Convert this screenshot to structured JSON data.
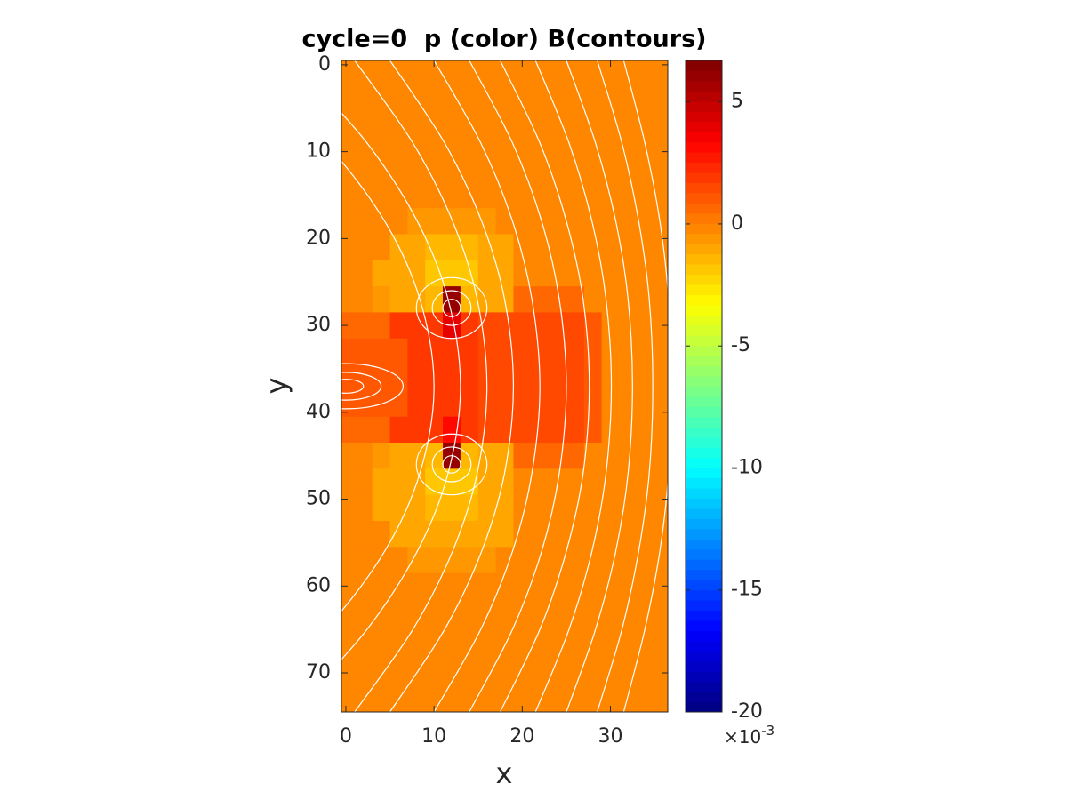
{
  "chart_data": {
    "type": "heatmap",
    "title": "cycle=0  p (color) B(contours)",
    "x_label": "x",
    "y_label": "y",
    "xlim": [
      -0.5,
      36.5
    ],
    "ylim": [
      -0.5,
      74.5
    ],
    "y_reversed": true,
    "xticks": [
      0,
      10,
      20,
      30
    ],
    "yticks": [
      0,
      10,
      20,
      30,
      40,
      50,
      60,
      70
    ],
    "colormap": "jet",
    "clim": [
      -20,
      6.7
    ],
    "colorbar_ticks": [
      -20,
      -15,
      -10,
      -5,
      0,
      5
    ],
    "colorbar_scale_label": {
      "base": "×10",
      "exponent": "-3"
    },
    "x": [
      0,
      2,
      4,
      6,
      8,
      10,
      12,
      14,
      16,
      18,
      20,
      22,
      24,
      26,
      28,
      30,
      32,
      34,
      36
    ],
    "y": [
      0,
      3,
      6,
      9,
      12,
      15,
      18,
      21,
      24,
      27,
      30,
      33,
      36,
      39,
      42,
      45,
      48,
      51,
      54,
      57,
      60,
      63,
      66,
      69,
      72,
      75
    ],
    "values": [
      [
        0,
        0,
        0,
        0,
        0,
        0,
        0,
        0,
        0,
        0,
        0,
        0,
        0,
        0,
        0,
        0,
        0,
        0,
        0
      ],
      [
        0,
        0,
        0,
        0,
        0,
        0,
        0,
        0,
        0,
        0,
        0,
        0,
        0,
        0,
        0,
        0,
        0,
        0,
        0
      ],
      [
        0,
        0,
        0,
        0,
        0,
        0,
        0,
        0,
        0,
        0,
        0,
        0,
        0,
        0,
        0,
        0,
        0,
        0,
        0
      ],
      [
        0,
        0,
        0,
        0,
        0,
        0,
        0,
        0,
        0,
        0,
        0,
        0,
        0,
        0,
        0,
        0,
        0,
        0,
        0
      ],
      [
        0,
        0,
        0,
        0,
        0,
        0,
        0,
        0,
        0,
        0,
        0,
        0,
        0,
        0,
        0,
        0,
        0,
        0,
        0
      ],
      [
        0,
        0,
        0,
        0,
        0,
        0,
        0,
        0,
        0,
        0,
        0,
        0,
        0,
        0,
        0,
        0,
        0,
        0,
        0
      ],
      [
        0,
        0,
        0,
        0,
        -0.5,
        -0.5,
        -0.5,
        -0.5,
        -0.5,
        0,
        0,
        0,
        0,
        0,
        0,
        0,
        0,
        0,
        0
      ],
      [
        0,
        0,
        0,
        -1,
        -1,
        -1.5,
        -1.5,
        -1.5,
        -1,
        -1,
        0,
        0,
        0,
        0,
        0,
        0,
        0,
        0,
        0
      ],
      [
        0,
        0,
        -1,
        -1,
        -1,
        -2,
        -2,
        -2,
        -1,
        -1,
        0,
        0,
        0,
        0,
        0,
        0,
        0,
        0,
        0
      ],
      [
        0,
        0,
        -0.5,
        -1,
        -1,
        -1.5,
        6,
        -1.5,
        -1,
        -1,
        0.5,
        0.5,
        0.5,
        0.5,
        0,
        0,
        0,
        0,
        0
      ],
      [
        0.5,
        0.5,
        0.5,
        2,
        2,
        2,
        4,
        2,
        1.5,
        1.5,
        1.5,
        1.5,
        1.5,
        1.5,
        1,
        0,
        0,
        0,
        0
      ],
      [
        1,
        1,
        1,
        1,
        2,
        2,
        2,
        2,
        1.5,
        1.5,
        1.5,
        1.5,
        1.5,
        1.5,
        1,
        0,
        0,
        0,
        0
      ],
      [
        1,
        1,
        1,
        1,
        2,
        2,
        2,
        2,
        1.5,
        1.5,
        1.5,
        1.5,
        1.5,
        1.5,
        1,
        0,
        0,
        0,
        0
      ],
      [
        1,
        1,
        1,
        1,
        2,
        2,
        2,
        2,
        1.5,
        1.5,
        1.5,
        1.5,
        1.5,
        1.5,
        1,
        0,
        0,
        0,
        0
      ],
      [
        0.5,
        0.5,
        0.5,
        2,
        2,
        2,
        3,
        2,
        1.5,
        1.5,
        1.5,
        1.5,
        1.5,
        1.5,
        1,
        0,
        0,
        0,
        0
      ],
      [
        0,
        0,
        -0.5,
        -1,
        -1,
        -1.5,
        6,
        -1.5,
        -1,
        -1,
        0.5,
        0.5,
        0.5,
        0.5,
        0,
        0,
        0,
        0,
        0
      ],
      [
        0,
        0,
        -1,
        -1,
        -1,
        -2,
        -2,
        -2,
        -1,
        -1,
        0,
        0,
        0,
        0,
        0,
        0,
        0,
        0,
        0
      ],
      [
        0,
        0,
        -1,
        -1,
        -1,
        -1.5,
        -1.5,
        -1.5,
        -1,
        -1,
        0,
        0,
        0,
        0,
        0,
        0,
        0,
        0,
        0
      ],
      [
        0,
        0,
        0,
        -1,
        -1,
        -1,
        -1,
        -1,
        -1,
        -1,
        0,
        0,
        0,
        0,
        0,
        0,
        0,
        0,
        0
      ],
      [
        0,
        0,
        0,
        0,
        -0.5,
        -0.5,
        -0.5,
        -0.5,
        -0.5,
        0,
        0,
        0,
        0,
        0,
        0,
        0,
        0,
        0,
        0
      ],
      [
        0,
        0,
        0,
        0,
        0,
        0,
        0,
        0,
        0,
        0,
        0,
        0,
        0,
        0,
        0,
        0,
        0,
        0,
        0
      ],
      [
        0,
        0,
        0,
        0,
        0,
        0,
        0,
        0,
        0,
        0,
        0,
        0,
        0,
        0,
        0,
        0,
        0,
        0,
        0
      ],
      [
        0,
        0,
        0,
        0,
        0,
        0,
        0,
        0,
        0,
        0,
        0,
        0,
        0,
        0,
        0,
        0,
        0,
        0,
        0
      ],
      [
        0,
        0,
        0,
        0,
        0,
        0,
        0,
        0,
        0,
        0,
        0,
        0,
        0,
        0,
        0,
        0,
        0,
        0,
        0
      ],
      [
        0,
        0,
        0,
        0,
        0,
        0,
        0,
        0,
        0,
        0,
        0,
        0,
        0,
        0,
        0,
        0,
        0,
        0,
        0
      ],
      [
        0,
        0,
        0,
        0,
        0,
        0,
        0,
        0,
        0,
        0,
        0,
        0,
        0,
        0,
        0,
        0,
        0,
        0,
        0
      ]
    ],
    "contour_color": "#ffffff",
    "contours": [
      {
        "x": [
          -12,
          -2.3,
          4.4,
          8.4,
          10,
          8.4,
          4.4,
          -2.3,
          -12
        ],
        "y": [
          -0.5,
          9,
          18,
          27,
          37,
          47,
          56,
          65,
          74.5
        ]
      },
      {
        "x": [
          -6,
          2.4,
          8.1,
          11.6,
          13,
          11.6,
          8.1,
          2.4,
          -6
        ],
        "y": [
          -0.5,
          9,
          18,
          27,
          37,
          47,
          56,
          65,
          74.5
        ]
      },
      {
        "x": [
          1,
          7.6,
          12.1,
          14.9,
          16,
          14.9,
          12.1,
          7.6,
          1
        ],
        "y": [
          -0.5,
          9,
          18,
          27,
          37,
          47,
          56,
          65,
          74.5
        ]
      },
      {
        "x": [
          5,
          11.2,
          15.4,
          18,
          19,
          18,
          15.4,
          11.2,
          5
        ],
        "y": [
          -0.5,
          9,
          18,
          27,
          37,
          47,
          56,
          65,
          74.5
        ]
      },
      {
        "x": [
          10,
          15.3,
          18.9,
          21.1,
          22,
          21.1,
          18.9,
          15.3,
          10
        ],
        "y": [
          -0.5,
          9,
          18,
          27,
          37,
          47,
          56,
          65,
          74.5
        ]
      },
      {
        "x": [
          14,
          18.9,
          22.2,
          24.2,
          25,
          24.2,
          22.2,
          18.9,
          14
        ],
        "y": [
          -0.5,
          9,
          18,
          27,
          37,
          47,
          56,
          65,
          74.5
        ]
      },
      {
        "x": [
          17.5,
          22,
          25,
          26.9,
          27.6,
          26.9,
          25,
          22,
          17.5
        ],
        "y": [
          -0.5,
          9,
          18,
          27,
          37,
          47,
          56,
          65,
          74.5
        ]
      },
      {
        "x": [
          21.5,
          25.3,
          27.9,
          29.5,
          30.1,
          29.5,
          27.9,
          25.3,
          21.5
        ],
        "y": [
          -0.5,
          9,
          18,
          27,
          37,
          47,
          56,
          65,
          74.5
        ]
      },
      {
        "x": [
          25,
          28.3,
          30.6,
          32,
          32.5,
          32,
          30.6,
          28.3,
          25
        ],
        "y": [
          -0.5,
          9,
          18,
          27,
          37,
          47,
          56,
          65,
          74.5
        ]
      },
      {
        "x": [
          28.5,
          31.3,
          33.2,
          34.4,
          34.8,
          34.4,
          33.2,
          31.3,
          28.5
        ],
        "y": [
          -0.5,
          9,
          18,
          27,
          37,
          47,
          56,
          65,
          74.5
        ]
      },
      {
        "x": [
          31.5,
          33.9,
          35.6,
          36.6,
          37,
          36.6,
          35.6,
          33.9,
          31.5
        ],
        "y": [
          -0.5,
          9,
          18,
          27,
          37,
          47,
          56,
          65,
          74.5
        ]
      }
    ],
    "contour_loops": [
      {
        "cx": 12,
        "cy": 28,
        "rx": 1,
        "ry": 1
      },
      {
        "cx": 12,
        "cy": 28,
        "rx": 2.2,
        "ry": 2
      },
      {
        "cx": 12,
        "cy": 28,
        "rx": 4,
        "ry": 3.5
      },
      {
        "cx": 12,
        "cy": 46,
        "rx": 1,
        "ry": 1
      },
      {
        "cx": 12,
        "cy": 46,
        "rx": 2.2,
        "ry": 2
      },
      {
        "cx": 12,
        "cy": 46,
        "rx": 4,
        "ry": 3.5
      },
      {
        "cx": 0,
        "cy": 37,
        "rx": 2,
        "ry": 0.8
      },
      {
        "cx": 0,
        "cy": 37,
        "rx": 4,
        "ry": 1.6
      },
      {
        "cx": 0,
        "cy": 37,
        "rx": 6.5,
        "ry": 2.6
      }
    ]
  }
}
